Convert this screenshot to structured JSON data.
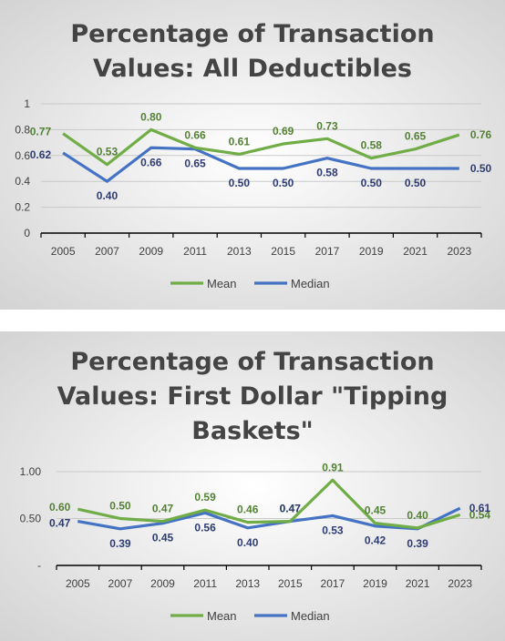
{
  "chart_data": [
    {
      "type": "line",
      "title_lines": [
        "Percentage of Transaction",
        "Values: All Deductibles"
      ],
      "x": [
        "2005",
        "2007",
        "2009",
        "2011",
        "2013",
        "2015",
        "2017",
        "2019",
        "2021",
        "2023"
      ],
      "y_ticks": [
        "0",
        "0.2",
        "0.4",
        "0.6",
        "0.8",
        "1"
      ],
      "ylim": [
        0,
        1
      ],
      "grid": true,
      "legend_position": "bottom",
      "series": [
        {
          "name": "Mean",
          "color": "#70ad47",
          "values": [
            0.77,
            0.53,
            0.8,
            0.66,
            0.61,
            0.69,
            0.73,
            0.58,
            0.65,
            0.76
          ],
          "labels": [
            "0.77",
            "0.53",
            "0.80",
            "0.66",
            "0.61",
            "0.69",
            "0.73",
            "0.58",
            "0.65",
            "0.76"
          ]
        },
        {
          "name": "Median",
          "color": "#4472c4",
          "values": [
            0.62,
            0.4,
            0.66,
            0.65,
            0.5,
            0.5,
            0.58,
            0.5,
            0.5,
            0.5
          ],
          "labels": [
            "0.62",
            "0.40",
            "0.66",
            "0.65",
            "0.50",
            "0.50",
            "0.58",
            "0.50",
            "0.50",
            "0.50"
          ]
        }
      ]
    },
    {
      "type": "line",
      "title_lines": [
        "Percentage of Transaction",
        "Values: First Dollar \"Tipping",
        "Baskets\""
      ],
      "x": [
        "2005",
        "2007",
        "2009",
        "2011",
        "2013",
        "2015",
        "2017",
        "2019",
        "2021",
        "2023"
      ],
      "y_ticks": [
        "-",
        "0.50",
        "1.00"
      ],
      "ylim": [
        0,
        1
      ],
      "grid": true,
      "legend_position": "bottom",
      "series": [
        {
          "name": "Mean",
          "color": "#70ad47",
          "values": [
            0.6,
            0.5,
            0.47,
            0.59,
            0.46,
            0.47,
            0.91,
            0.45,
            0.4,
            0.54
          ],
          "labels": [
            "0.60",
            "0.50",
            "0.47",
            "0.59",
            "0.46",
            "0.47",
            "0.91",
            "0.45",
            "0.40",
            "0.54"
          ]
        },
        {
          "name": "Median",
          "color": "#4472c4",
          "values": [
            0.47,
            0.39,
            0.45,
            0.56,
            0.4,
            0.47,
            0.53,
            0.42,
            0.39,
            0.61
          ],
          "labels": [
            "0.47",
            "0.39",
            "0.45",
            "0.56",
            "0.40",
            "0.47",
            "0.53",
            "0.42",
            "0.39",
            "0.61"
          ]
        }
      ]
    }
  ]
}
